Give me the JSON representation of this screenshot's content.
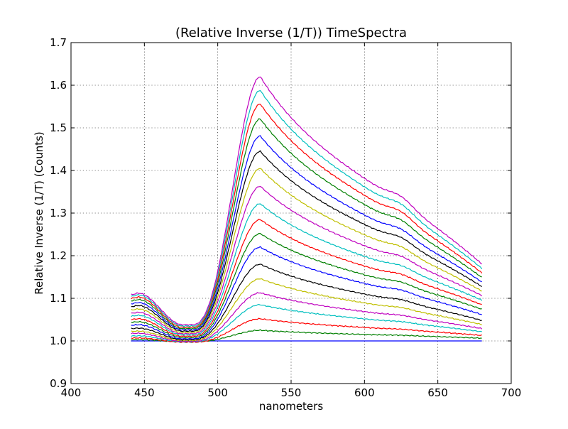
{
  "chart_data": {
    "type": "line",
    "title": "(Relative Inverse (1/T)) TimeSpectra",
    "xlabel": "nanometers",
    "ylabel": "Relative Inverse (1/T) (Counts)",
    "xlim": [
      400,
      700
    ],
    "ylim": [
      0.9,
      1.7
    ],
    "xticks": [
      "400",
      "450",
      "500",
      "550",
      "600",
      "650",
      "700"
    ],
    "yticks": [
      "0.9",
      "1.0",
      "1.1",
      "1.2",
      "1.3",
      "1.4",
      "1.5",
      "1.6",
      "1.7"
    ],
    "grid": true,
    "x_range": [
      441,
      680
    ],
    "colors_cycle": [
      "#0000ff",
      "#008000",
      "#ff0000",
      "#00bfbf",
      "#bf00bf",
      "#bfbf00",
      "#000000"
    ],
    "series": [
      {
        "peak": 1.0,
        "start": 1.0,
        "min": 1.0,
        "end": 1.0,
        "color": "#0000ff"
      },
      {
        "peak": 1.025,
        "start": 1.003,
        "min": 0.998,
        "end": 1.006,
        "color": "#008000"
      },
      {
        "peak": 1.052,
        "start": 1.007,
        "min": 0.997,
        "end": 1.012,
        "color": "#ff0000"
      },
      {
        "peak": 1.085,
        "start": 1.012,
        "min": 0.998,
        "end": 1.02,
        "color": "#00bfbf"
      },
      {
        "peak": 1.113,
        "start": 1.018,
        "min": 0.999,
        "end": 1.027,
        "color": "#bf00bf"
      },
      {
        "peak": 1.146,
        "start": 1.023,
        "min": 1.001,
        "end": 1.036,
        "color": "#bfbf00"
      },
      {
        "peak": 1.18,
        "start": 1.03,
        "min": 1.003,
        "end": 1.045,
        "color": "#000000"
      },
      {
        "peak": 1.22,
        "start": 1.038,
        "min": 1.005,
        "end": 1.058,
        "color": "#0000ff"
      },
      {
        "peak": 1.252,
        "start": 1.045,
        "min": 1.008,
        "end": 1.07,
        "color": "#008000"
      },
      {
        "peak": 1.285,
        "start": 1.052,
        "min": 1.011,
        "end": 1.08,
        "color": "#ff0000"
      },
      {
        "peak": 1.322,
        "start": 1.06,
        "min": 1.014,
        "end": 1.09,
        "color": "#00bfbf"
      },
      {
        "peak": 1.363,
        "start": 1.067,
        "min": 1.017,
        "end": 1.1,
        "color": "#bf00bf"
      },
      {
        "peak": 1.405,
        "start": 1.075,
        "min": 1.02,
        "end": 1.11,
        "color": "#bfbf00"
      },
      {
        "peak": 1.445,
        "start": 1.083,
        "min": 1.023,
        "end": 1.12,
        "color": "#000000"
      },
      {
        "peak": 1.481,
        "start": 1.09,
        "min": 1.026,
        "end": 1.13,
        "color": "#0000ff"
      },
      {
        "peak": 1.521,
        "start": 1.097,
        "min": 1.029,
        "end": 1.14,
        "color": "#008000"
      },
      {
        "peak": 1.556,
        "start": 1.103,
        "min": 1.032,
        "end": 1.15,
        "color": "#ff0000"
      },
      {
        "peak": 1.588,
        "start": 1.108,
        "min": 1.035,
        "end": 1.16,
        "color": "#00bfbf"
      },
      {
        "peak": 1.62,
        "start": 1.112,
        "min": 1.038,
        "end": 1.17,
        "color": "#bf00bf"
      }
    ]
  }
}
